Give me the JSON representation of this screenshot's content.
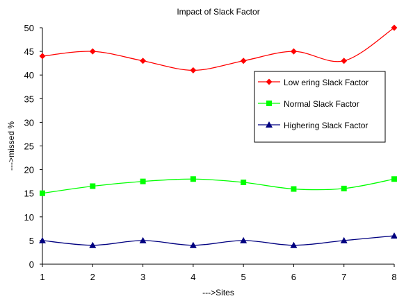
{
  "chart_data": {
    "type": "line",
    "title": "Impact of Slack Factor",
    "xlabel": "--->Sites",
    "ylabel": "--->missed %",
    "x": [
      1,
      2,
      3,
      4,
      5,
      6,
      7,
      8
    ],
    "ylim": [
      0,
      50
    ],
    "yticks": [
      0,
      5,
      10,
      15,
      20,
      25,
      30,
      35,
      40,
      45,
      50
    ],
    "grid": false,
    "legend_position": "right",
    "series": [
      {
        "name": "Low ering Slack Factor",
        "values": [
          44,
          45,
          43,
          41,
          43,
          45,
          43,
          50
        ],
        "color": "#ff0000",
        "marker": "diamond"
      },
      {
        "name": "Normal Slack Factor",
        "values": [
          15,
          16.5,
          17.5,
          18,
          17.3,
          15.9,
          16,
          18
        ],
        "color": "#00ff00",
        "marker": "square"
      },
      {
        "name": "Highering Slack Factor",
        "values": [
          5,
          4,
          5,
          4,
          5,
          4,
          5,
          6
        ],
        "color": "#000080",
        "marker": "triangle"
      }
    ]
  }
}
